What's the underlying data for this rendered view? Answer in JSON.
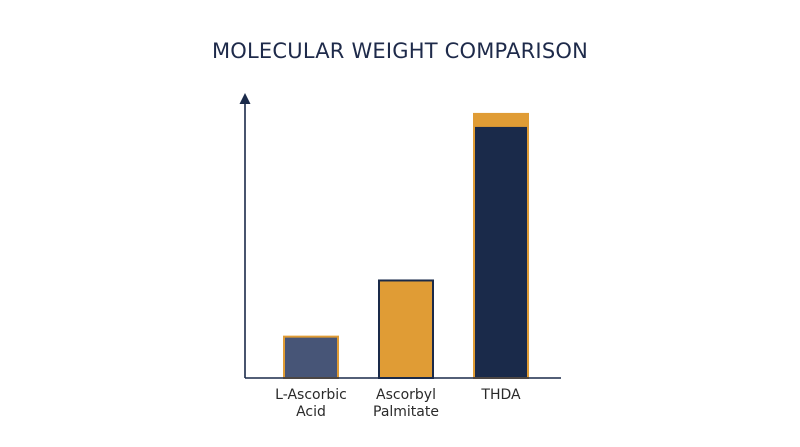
{
  "chart_data": {
    "type": "bar",
    "title": "MOLECULAR WEIGHT COMPARISON",
    "xlabel": "",
    "ylabel": "",
    "categories": [
      [
        "L-Ascorbic",
        "Acid"
      ],
      [
        "Ascorbyl",
        "Palmitate"
      ],
      [
        "THDA"
      ]
    ],
    "values": [
      176,
      415,
      1128
    ],
    "ylim": [
      0,
      1200
    ],
    "grid": false,
    "legend": "none",
    "bar_colors": [
      {
        "fill": "#475577",
        "stroke": "#e09c35"
      },
      {
        "fill": "#e09c35",
        "stroke": "#1a2a4a"
      },
      {
        "fill": "#1a2a4a",
        "stroke": "#e09c35"
      }
    ],
    "axis_color": "#1a2a4a"
  }
}
